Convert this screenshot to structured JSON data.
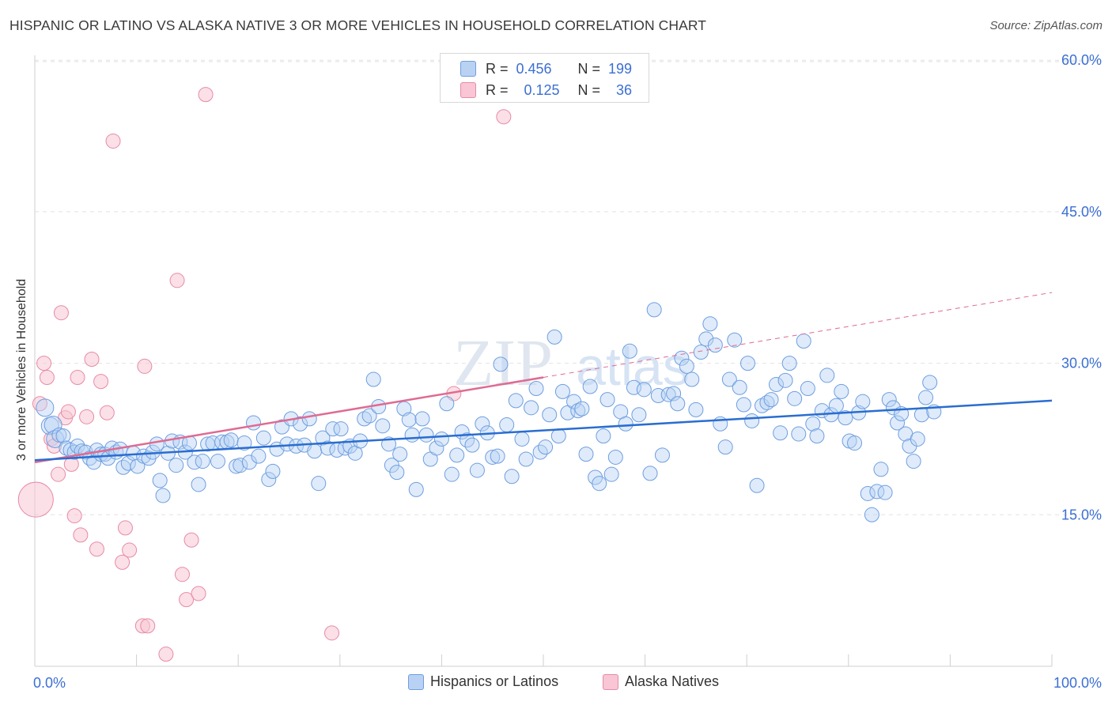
{
  "title": "HISPANIC OR LATINO VS ALASKA NATIVE 3 OR MORE VEHICLES IN HOUSEHOLD CORRELATION CHART",
  "source": "Source: ZipAtlas.com",
  "colors": {
    "blue": "#6e9ee0",
    "blue_fill": "#b9d2f4",
    "blue_line": "#2a6dd0",
    "pink": "#e88aa6",
    "pink_fill": "#f8c6d4",
    "pink_line": "#e06a91",
    "axis_text": "#3b6fd4"
  },
  "legend": {
    "rows": [
      {
        "r_label": "R =",
        "r_value": "0.456",
        "n_label": "N =",
        "n_value": "199"
      },
      {
        "r_label": "R =",
        "r_value": "0.125",
        "n_label": "N =",
        "n_value": "36"
      }
    ]
  },
  "bottom_legend": [
    "Hispanics or Latinos",
    "Alaska Natives"
  ],
  "chart_data": {
    "type": "scatter",
    "title": "HISPANIC OR LATINO VS ALASKA NATIVE 3 OR MORE VEHICLES IN HOUSEHOLD CORRELATION CHART",
    "xlabel": "",
    "ylabel": "3 or more Vehicles in Household",
    "xlim": [
      0,
      100
    ],
    "ylim": [
      0,
      62
    ],
    "x_tick_labels": [
      "0.0%",
      "100.0%"
    ],
    "y_ticks": [
      15,
      30,
      45,
      60
    ],
    "y_tick_labels": [
      "15.0%",
      "30.0%",
      "45.0%",
      "60.0%"
    ],
    "grid": true,
    "legend_position": "top-center",
    "series": [
      {
        "name": "Hispanics or Latinos",
        "trend": {
          "x": [
            0,
            100
          ],
          "y": [
            20.4,
            26.3
          ]
        },
        "points": [
          [
            1,
            25.6
          ],
          [
            1.5,
            23.8
          ],
          [
            1.8,
            23.9
          ],
          [
            2,
            22.5
          ],
          [
            2.4,
            22.9
          ],
          [
            2.8,
            22.8
          ],
          [
            3.1,
            21.6
          ],
          [
            3.5,
            21.4
          ],
          [
            3.9,
            21.2
          ],
          [
            4.2,
            21.8
          ],
          [
            4.6,
            21.3
          ],
          [
            5,
            21.2
          ],
          [
            5.4,
            20.6
          ],
          [
            5.8,
            20.2
          ],
          [
            6.1,
            21.4
          ],
          [
            6.5,
            21.0
          ],
          [
            6.9,
            21.0
          ],
          [
            7.2,
            20.6
          ],
          [
            7.6,
            21.6
          ],
          [
            8,
            21.2
          ],
          [
            8.4,
            21.5
          ],
          [
            8.7,
            19.7
          ],
          [
            9.2,
            20.1
          ],
          [
            9.7,
            21.1
          ],
          [
            10.1,
            19.8
          ],
          [
            10.7,
            20.8
          ],
          [
            11.2,
            20.6
          ],
          [
            11.6,
            21.2
          ],
          [
            12,
            22.0
          ],
          [
            12.3,
            18.4
          ],
          [
            12.6,
            16.9
          ],
          [
            13.1,
            21.1
          ],
          [
            13.5,
            22.3
          ],
          [
            13.9,
            19.9
          ],
          [
            14.3,
            22.2
          ],
          [
            14.8,
            21.2
          ],
          [
            15.2,
            22.1
          ],
          [
            15.7,
            20.2
          ],
          [
            16.1,
            18.0
          ],
          [
            16.5,
            20.3
          ],
          [
            17,
            22.0
          ],
          [
            17.5,
            22.1
          ],
          [
            18,
            20.3
          ],
          [
            18.4,
            22.2
          ],
          [
            18.9,
            22.2
          ],
          [
            19.3,
            22.4
          ],
          [
            19.8,
            19.8
          ],
          [
            20.2,
            19.9
          ],
          [
            20.6,
            22.1
          ],
          [
            21.1,
            20.2
          ],
          [
            21.5,
            24.1
          ],
          [
            22,
            20.8
          ],
          [
            22.5,
            22.6
          ],
          [
            23,
            18.5
          ],
          [
            23.4,
            19.3
          ],
          [
            23.8,
            21.5
          ],
          [
            24.3,
            23.7
          ],
          [
            24.8,
            22.0
          ],
          [
            25.2,
            24.5
          ],
          [
            25.7,
            21.8
          ],
          [
            26.1,
            24.0
          ],
          [
            26.5,
            21.9
          ],
          [
            27,
            24.5
          ],
          [
            27.5,
            21.3
          ],
          [
            27.9,
            18.1
          ],
          [
            28.3,
            22.6
          ],
          [
            28.8,
            21.6
          ],
          [
            29.3,
            23.5
          ],
          [
            29.7,
            21.4
          ],
          [
            30.1,
            23.5
          ],
          [
            30.5,
            21.6
          ],
          [
            31,
            21.8
          ],
          [
            31.5,
            21.1
          ],
          [
            32,
            22.3
          ],
          [
            32.4,
            24.5
          ],
          [
            32.9,
            24.8
          ],
          [
            33.3,
            28.4
          ],
          [
            33.8,
            25.7
          ],
          [
            34.2,
            23.8
          ],
          [
            34.8,
            22.0
          ],
          [
            35.1,
            19.9
          ],
          [
            35.6,
            19.2
          ],
          [
            35.9,
            21.0
          ],
          [
            36.3,
            25.5
          ],
          [
            36.8,
            24.4
          ],
          [
            37.1,
            22.9
          ],
          [
            37.5,
            17.5
          ],
          [
            38.1,
            24.5
          ],
          [
            38.5,
            22.9
          ],
          [
            38.9,
            20.5
          ],
          [
            39.5,
            21.6
          ],
          [
            40.0,
            22.5
          ],
          [
            40.5,
            26.0
          ],
          [
            41,
            19.0
          ],
          [
            41.5,
            20.9
          ],
          [
            42,
            23.2
          ],
          [
            42.5,
            22.4
          ],
          [
            43,
            21.9
          ],
          [
            43.5,
            19.4
          ],
          [
            44,
            24.0
          ],
          [
            44.5,
            23.1
          ],
          [
            45,
            20.7
          ],
          [
            45.5,
            20.8
          ],
          [
            45.8,
            29.9
          ],
          [
            46.4,
            23.9
          ],
          [
            46.9,
            18.8
          ],
          [
            47.3,
            26.3
          ],
          [
            47.9,
            22.5
          ],
          [
            48.3,
            20.5
          ],
          [
            48.8,
            25.6
          ],
          [
            49.3,
            27.5
          ],
          [
            49.7,
            21.2
          ],
          [
            50.2,
            21.7
          ],
          [
            50.6,
            24.9
          ],
          [
            51.1,
            32.6
          ],
          [
            51.5,
            22.8
          ],
          [
            51.9,
            27.2
          ],
          [
            52.4,
            25.1
          ],
          [
            53.0,
            26.2
          ],
          [
            53.4,
            25.3
          ],
          [
            53.8,
            25.5
          ],
          [
            54.2,
            21.0
          ],
          [
            54.6,
            27.7
          ],
          [
            55.1,
            18.7
          ],
          [
            55.5,
            18.1
          ],
          [
            55.9,
            22.8
          ],
          [
            56.3,
            26.4
          ],
          [
            56.7,
            19.0
          ],
          [
            57.1,
            20.7
          ],
          [
            57.6,
            25.2
          ],
          [
            58.1,
            24.0
          ],
          [
            58.5,
            31.2
          ],
          [
            58.9,
            27.6
          ],
          [
            59.4,
            24.9
          ],
          [
            59.9,
            27.4
          ],
          [
            60.5,
            19.1
          ],
          [
            60.9,
            35.3
          ],
          [
            61.3,
            26.8
          ],
          [
            61.7,
            20.9
          ],
          [
            62.3,
            26.9
          ],
          [
            62.8,
            27.0
          ],
          [
            63.2,
            26.0
          ],
          [
            63.6,
            30.5
          ],
          [
            64.1,
            29.7
          ],
          [
            64.6,
            28.4
          ],
          [
            65,
            25.4
          ],
          [
            65.5,
            31.1
          ],
          [
            66,
            32.4
          ],
          [
            66.4,
            33.9
          ],
          [
            66.9,
            31.8
          ],
          [
            67.4,
            24.0
          ],
          [
            67.9,
            21.7
          ],
          [
            68.3,
            28.4
          ],
          [
            68.8,
            32.3
          ],
          [
            69.3,
            27.6
          ],
          [
            69.7,
            25.9
          ],
          [
            70.1,
            30.0
          ],
          [
            70.5,
            24.3
          ],
          [
            71,
            17.9
          ],
          [
            71.5,
            25.8
          ],
          [
            72,
            26.1
          ],
          [
            72.4,
            26.4
          ],
          [
            72.9,
            27.9
          ],
          [
            73.3,
            23.1
          ],
          [
            73.8,
            28.3
          ],
          [
            74.2,
            30.0
          ],
          [
            74.7,
            26.5
          ],
          [
            75.1,
            23.0
          ],
          [
            75.6,
            32.2
          ],
          [
            76,
            27.5
          ],
          [
            76.5,
            24.0
          ],
          [
            76.9,
            22.8
          ],
          [
            77.4,
            25.3
          ],
          [
            77.9,
            28.8
          ],
          [
            78.3,
            24.9
          ],
          [
            78.8,
            25.8
          ],
          [
            79.3,
            27.2
          ],
          [
            79.7,
            24.6
          ],
          [
            80.1,
            22.3
          ],
          [
            80.6,
            22.1
          ],
          [
            81,
            25.1
          ],
          [
            81.4,
            26.2
          ],
          [
            81.9,
            17.1
          ],
          [
            82.3,
            15.0
          ],
          [
            82.8,
            17.3
          ],
          [
            83.2,
            19.5
          ],
          [
            83.6,
            17.2
          ],
          [
            84,
            26.4
          ],
          [
            84.4,
            25.6
          ],
          [
            84.8,
            24.1
          ],
          [
            85.2,
            25.0
          ],
          [
            85.6,
            23.0
          ],
          [
            86,
            21.8
          ],
          [
            86.4,
            20.3
          ],
          [
            86.8,
            22.5
          ],
          [
            87.2,
            24.9
          ],
          [
            87.6,
            26.6
          ],
          [
            88,
            28.1
          ],
          [
            88.4,
            25.2
          ]
        ]
      },
      {
        "name": "Alaska Natives",
        "trend": {
          "x": [
            0,
            50,
            100
          ],
          "y": [
            20.2,
            28.6,
            37.0
          ]
        },
        "points": [
          [
            0.1,
            16.5
          ],
          [
            0.5,
            26.0
          ],
          [
            0.9,
            30.0
          ],
          [
            1.2,
            28.6
          ],
          [
            1.6,
            22.5
          ],
          [
            1.9,
            21.8
          ],
          [
            2.3,
            19.0
          ],
          [
            2.6,
            35.0
          ],
          [
            3,
            24.6
          ],
          [
            3.3,
            25.2
          ],
          [
            3.6,
            20.0
          ],
          [
            3.9,
            14.9
          ],
          [
            4.2,
            28.6
          ],
          [
            4.5,
            13.0
          ],
          [
            5.1,
            24.7
          ],
          [
            5.6,
            30.4
          ],
          [
            6.1,
            11.6
          ],
          [
            6.5,
            28.2
          ],
          [
            7.1,
            25.1
          ],
          [
            7.7,
            52.0
          ],
          [
            8.6,
            10.3
          ],
          [
            8.9,
            13.7
          ],
          [
            9.3,
            11.5
          ],
          [
            10.8,
            29.7
          ],
          [
            10.6,
            4.0
          ],
          [
            11.1,
            4.0
          ],
          [
            12.9,
            1.2
          ],
          [
            14,
            38.2
          ],
          [
            14.5,
            9.1
          ],
          [
            14.9,
            6.6
          ],
          [
            15.4,
            12.5
          ],
          [
            16.1,
            7.2
          ],
          [
            16.8,
            56.6
          ],
          [
            29.2,
            3.3
          ],
          [
            41.2,
            27.0
          ],
          [
            46.1,
            54.4
          ]
        ]
      }
    ]
  }
}
